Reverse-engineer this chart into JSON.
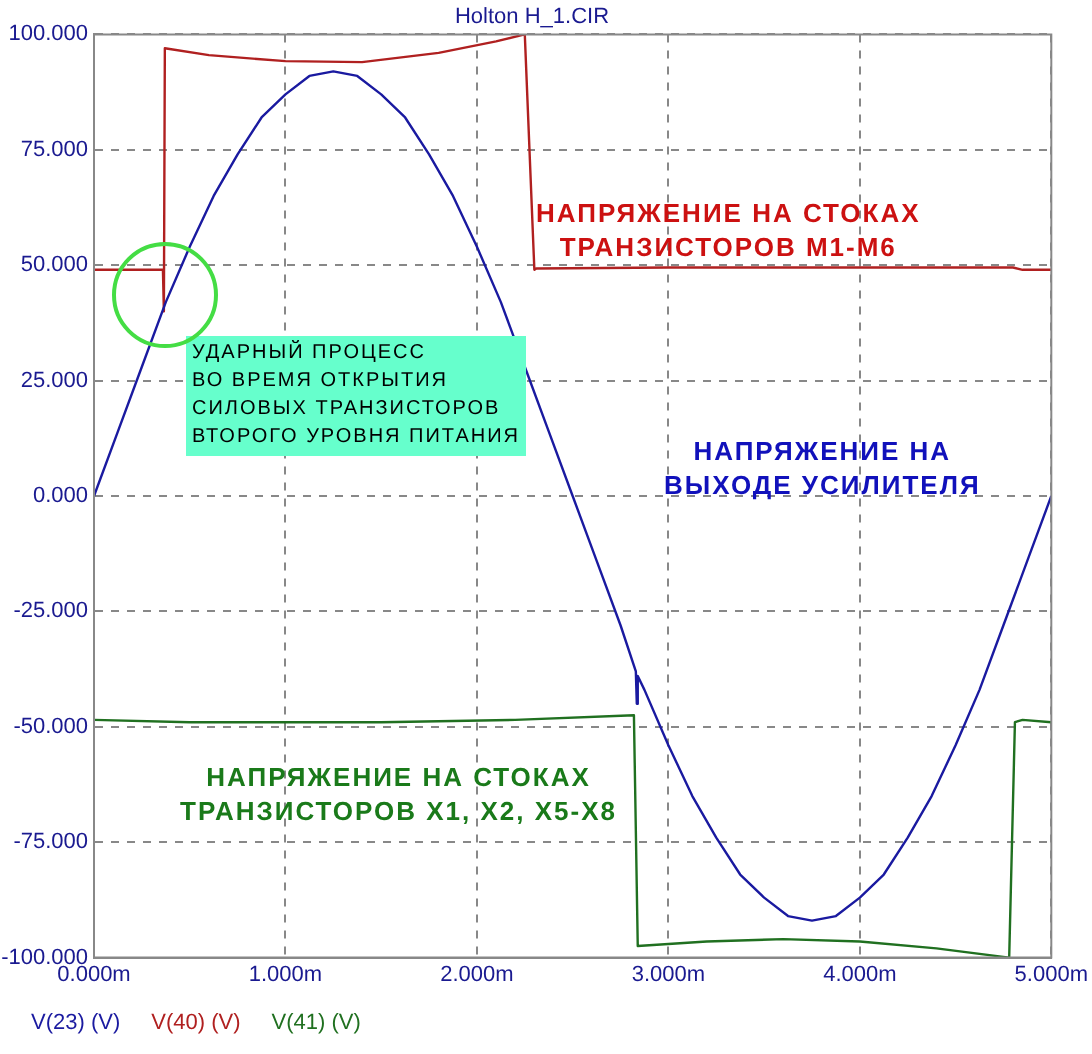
{
  "chart_data": {
    "type": "line",
    "title": "Holton H_1.CIR",
    "xlim": [
      0,
      5
    ],
    "xticks": [
      {
        "value": 0,
        "label": "0.000m"
      },
      {
        "value": 1,
        "label": "1.000m"
      },
      {
        "value": 2,
        "label": "2.000m"
      },
      {
        "value": 3,
        "label": "3.000m"
      },
      {
        "value": 4,
        "label": "4.000m"
      },
      {
        "value": 5,
        "label": "5.000m"
      }
    ],
    "ylim": [
      -100,
      100
    ],
    "yticks": [
      {
        "value": -100,
        "label": "-100.000"
      },
      {
        "value": -75,
        "label": "-75.000"
      },
      {
        "value": -50,
        "label": "-50.000"
      },
      {
        "value": -25,
        "label": "-25.000"
      },
      {
        "value": 0,
        "label": "0.000"
      },
      {
        "value": 25,
        "label": "25.000"
      },
      {
        "value": 50,
        "label": "50.000"
      },
      {
        "value": 75,
        "label": "75.000"
      },
      {
        "value": 100,
        "label": "100.000"
      }
    ],
    "grid": true,
    "legend": "bottom left",
    "marker": "none",
    "line_style": "solid",
    "series": [
      {
        "name": "V(23) (V)",
        "color": "#1a1aa0",
        "x": [
          0,
          0.125,
          0.25,
          0.375,
          0.5,
          0.625,
          0.75,
          0.875,
          1,
          1.125,
          1.25,
          1.375,
          1.5,
          1.625,
          1.75,
          1.875,
          2,
          2.125,
          2.25,
          2.375,
          2.5,
          2.625,
          2.75,
          2.83,
          2.835,
          2.84,
          2.875,
          3,
          3.125,
          3.25,
          3.375,
          3.5,
          3.625,
          3.75,
          3.875,
          4,
          4.125,
          4.25,
          4.375,
          4.5,
          4.625,
          4.75,
          4.875,
          5
        ],
        "values": [
          0,
          14,
          28,
          42,
          54,
          65,
          74,
          82,
          87,
          91,
          92,
          91,
          87,
          82,
          74,
          65,
          54,
          42,
          28,
          14,
          0,
          -14,
          -28,
          -38,
          -45,
          -39,
          -42,
          -54,
          -65,
          -74,
          -82,
          -87,
          -91,
          -92,
          -91,
          -87,
          -82,
          -74,
          -65,
          -54,
          -42,
          -28,
          -14,
          0
        ]
      },
      {
        "name": "V(40) (V)",
        "color": "#b02020",
        "x": [
          0,
          0.36,
          0.365,
          0.37,
          0.6,
          1.0,
          1.4,
          1.8,
          2.1,
          2.25,
          2.3,
          2.31,
          3.0,
          4.0,
          4.8,
          4.85,
          5
        ],
        "values": [
          49,
          49,
          40,
          97,
          95.5,
          94.2,
          94,
          96,
          98.5,
          100,
          49,
          49.3,
          49.5,
          49.5,
          49.5,
          49,
          49
        ]
      },
      {
        "name": "V(41) (V)",
        "color": "#207020",
        "x": [
          0,
          0.5,
          1.5,
          2.2,
          2.82,
          2.84,
          3.2,
          3.6,
          4.0,
          4.4,
          4.78,
          4.81,
          4.85,
          5
        ],
        "values": [
          -48.5,
          -49,
          -49,
          -48.5,
          -47.5,
          -97.5,
          -96.5,
          -96,
          -96.5,
          -98,
          -100,
          -49,
          -48.5,
          -49
        ]
      }
    ],
    "annotations": [
      "НАПРЯЖЕНИЕ НА СТОКАХ\nТРАНЗИСТОРОВ M1-M6",
      "УДАРНЫЙ ПРОЦЕСС\nВО ВРЕМЯ ОТКРЫТИЯ\nСИЛОВЫХ ТРАНЗИСТОРОВ\nВТОРОГО УРОВНЯ ПИТАНИЯ",
      "НАПРЯЖЕНИЕ НА\nВЫХОДЕ УСИЛИТЕЛЯ",
      "НАПРЯЖЕНИЕ НА СТОКАХ\nТРАНЗИСТОРОВ X1, X2, X5-X8"
    ]
  }
}
